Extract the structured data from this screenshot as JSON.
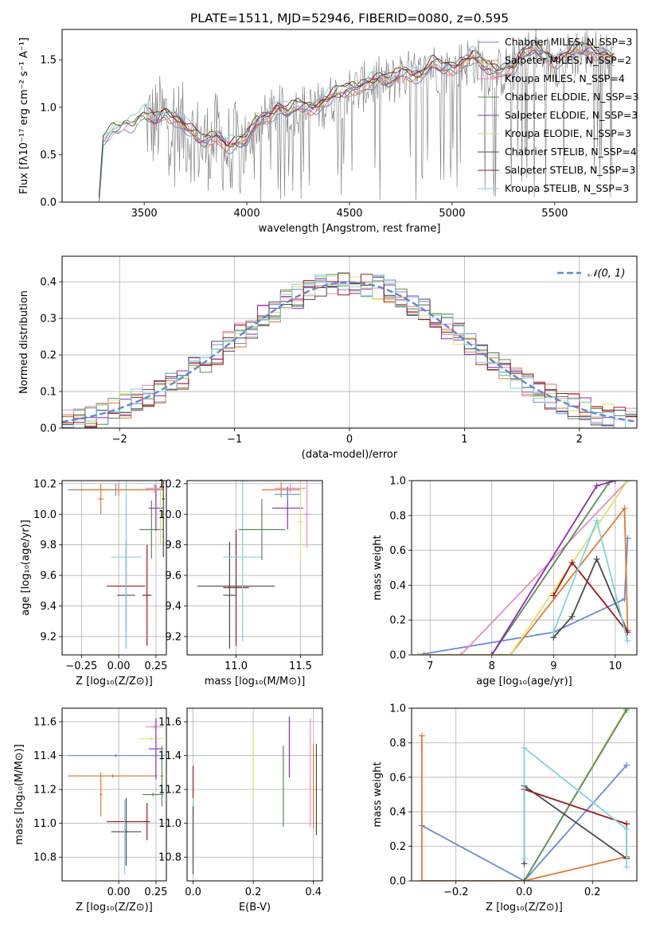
{
  "chart_data": [
    {
      "type": "line",
      "title": "PLATE=1511, MJD=52946, FIBERID=0080, z=0.595",
      "xlabel": "wavelength [Angstrom, rest frame]",
      "ylabel": "Flux [fλ10⁻¹⁷ erg cm⁻² s⁻¹ A⁻¹]",
      "xlim": [
        3100,
        5900
      ],
      "ylim": [
        0,
        1.82
      ],
      "xticks": [
        "3500",
        "4000",
        "4500",
        "5000",
        "5500"
      ],
      "yticks": [
        "0.0",
        "0.5",
        "1.0",
        "1.5"
      ],
      "grid": false,
      "legend_position": "top-right",
      "legend": [
        {
          "label": "Chabrier MILES, N_SSP=3",
          "color": "#6a8bd6"
        },
        {
          "label": "Salpeter MILES, N_SSP=2",
          "color": "#e07b30"
        },
        {
          "label": "Kroupa MILES, N_SSP=4",
          "color": "#e98bc2"
        },
        {
          "label": "Chabrier ELODIE, N_SSP=3",
          "color": "#5b8a5b"
        },
        {
          "label": "Salpeter ELODIE, N_SSP=3",
          "color": "#8f2bb3"
        },
        {
          "label": "Kroupa ELODIE, N_SSP=3",
          "color": "#d9e36b"
        },
        {
          "label": "Chabrier STELIB, N_SSP=4",
          "color": "#4a4a4a"
        },
        {
          "label": "Salpeter STELIB, N_SSP=3",
          "color": "#a01818"
        },
        {
          "label": "Kroupa STELIB, N_SSP=3",
          "color": "#80d4dc"
        }
      ],
      "model_continuum": {
        "x": [
          3200,
          3280,
          3300,
          3350,
          3400,
          3450,
          3500,
          3550,
          3600,
          3650,
          3700,
          3750,
          3800,
          3850,
          3900,
          3950,
          4000,
          4050,
          4100,
          4150,
          4200,
          4250,
          4300,
          4350,
          4400,
          4450,
          4500,
          4550,
          4600,
          4650,
          4700,
          4750,
          4800,
          4850,
          4900,
          4950,
          5000,
          5050,
          5100,
          5150,
          5200,
          5250,
          5300,
          5350,
          5400,
          5450,
          5500,
          5550,
          5600,
          5650,
          5700,
          5750,
          5800
        ],
        "y": [
          0.0,
          0.0,
          0.66,
          0.77,
          0.82,
          0.84,
          0.93,
          0.86,
          0.95,
          0.9,
          0.8,
          0.7,
          0.64,
          0.72,
          0.6,
          0.62,
          0.66,
          0.86,
          0.91,
          1.0,
          0.95,
          1.02,
          1.0,
          1.03,
          1.1,
          1.16,
          1.19,
          1.22,
          1.28,
          1.3,
          1.27,
          1.38,
          1.36,
          1.34,
          1.46,
          1.42,
          1.42,
          1.48,
          1.54,
          1.45,
          1.38,
          1.4,
          1.44,
          1.58,
          1.62,
          1.55,
          1.5,
          1.54,
          1.6,
          1.62,
          1.58,
          1.56,
          1.52
        ]
      }
    },
    {
      "type": "line",
      "xlabel": "(data-model)/error",
      "ylabel": "Normed distribution",
      "xlim": [
        -2.5,
        2.5
      ],
      "ylim": [
        0,
        0.47
      ],
      "xticks": [
        "−2",
        "−1",
        "0",
        "1",
        "2"
      ],
      "yticks": [
        "0.0",
        "0.1",
        "0.2",
        "0.3",
        "0.4"
      ],
      "grid": true,
      "legend_position": "top-right",
      "legend": [
        {
          "label": "𝒩(0, 1)",
          "color": "#5b8ad6"
        }
      ],
      "histogram_bins": 50,
      "gaussian": {
        "mean": 0,
        "sigma": 1
      }
    },
    {
      "type": "scatter",
      "xlabel": "Z [log₁₀(Z/Z⊙)]",
      "ylabel": "age  [log₁₀(age/yr)]",
      "xlim": [
        -0.38,
        0.32
      ],
      "ylim": [
        9.08,
        10.22
      ],
      "xticks": [
        "−0.25",
        "0.00",
        "0.25"
      ],
      "yticks": [
        "9.2",
        "9.4",
        "9.6",
        "9.8",
        "10.0",
        "10.2"
      ],
      "grid": true,
      "points": [
        {
          "x": 0.05,
          "y": 9.47,
          "xerr": 0.06,
          "yerr": 0.35,
          "color": "#4a4a4a"
        },
        {
          "x": 0.05,
          "y": 9.53,
          "xerr": 0.13,
          "yerr": 0.3,
          "color": "#a01818"
        },
        {
          "x": 0.19,
          "y": 9.47,
          "xerr": 0.03,
          "yerr": 0.33,
          "color": "#a01818"
        },
        {
          "x": 0.05,
          "y": 9.72,
          "xerr": 0.1,
          "yerr": 0.6,
          "color": "#80d4dc"
        },
        {
          "x": 0.22,
          "y": 9.9,
          "xerr": 0.08,
          "yerr": 0.19,
          "color": "#5b8a5b"
        },
        {
          "x": 0.25,
          "y": 10.04,
          "xerr": 0.05,
          "yerr": 0.15,
          "color": "#8f2bb3"
        },
        {
          "x": -0.02,
          "y": 10.16,
          "xerr": 0.32,
          "yerr": 0.04,
          "color": "#6a8bd6"
        },
        {
          "x": 0.0,
          "y": 10.16,
          "xerr": 0.3,
          "yerr": 0.04,
          "color": "#e07b30"
        },
        {
          "x": -0.12,
          "y": 10.1,
          "xerr": 0.02,
          "yerr": 0.1,
          "color": "#e07b30"
        },
        {
          "x": 0.24,
          "y": 10.17,
          "xerr": 0.06,
          "yerr": 0.03,
          "color": "#e98bc2"
        },
        {
          "x": 0.28,
          "y": 10.0,
          "xerr": 0.02,
          "yerr": 0.2,
          "color": "#d9e36b"
        },
        {
          "x": 0.3,
          "y": 10.1,
          "xerr": 0.01,
          "yerr": 0.38,
          "color": "#4a4a4a"
        }
      ]
    },
    {
      "type": "scatter",
      "xlabel": "mass [log₁₀(M/M⊙)]",
      "xlim": [
        10.62,
        11.67
      ],
      "ylim": [
        9.08,
        10.22
      ],
      "xticks": [
        "11.0",
        "11.5"
      ],
      "yticks": [
        "9.2",
        "9.4",
        "9.6",
        "9.8",
        "10.0",
        "10.2"
      ],
      "grid": true,
      "points": [
        {
          "x": 10.95,
          "y": 9.47,
          "xerr": 0.05,
          "yerr": 0.35,
          "color": "#4a4a4a"
        },
        {
          "x": 11.0,
          "y": 9.52,
          "xerr": 0.1,
          "yerr": 0.38,
          "color": "#a01818"
        },
        {
          "x": 11.0,
          "y": 9.53,
          "xerr": 0.3,
          "yerr": 0.05,
          "color": "#4a4a4a"
        },
        {
          "x": 11.05,
          "y": 9.72,
          "xerr": 0.15,
          "yerr": 0.55,
          "color": "#80d4dc"
        },
        {
          "x": 11.2,
          "y": 9.9,
          "xerr": 0.18,
          "yerr": 0.2,
          "color": "#5b8a5b"
        },
        {
          "x": 11.4,
          "y": 10.04,
          "xerr": 0.12,
          "yerr": 0.14,
          "color": "#8f2bb3"
        },
        {
          "x": 11.35,
          "y": 10.16,
          "xerr": 0.15,
          "yerr": 0.05,
          "color": "#e07b30"
        },
        {
          "x": 11.42,
          "y": 10.17,
          "xerr": 0.12,
          "yerr": 0.03,
          "color": "#e98bc2"
        },
        {
          "x": 11.4,
          "y": 10.13,
          "xerr": 0.1,
          "yerr": 0.05,
          "color": "#6a8bd6"
        },
        {
          "x": 11.55,
          "y": 10.0,
          "xerr": 0.03,
          "yerr": 0.22,
          "color": "#e98bc2"
        },
        {
          "x": 11.5,
          "y": 9.95,
          "xerr": 0.02,
          "yerr": 0.25,
          "color": "#d9e36b"
        }
      ]
    },
    {
      "type": "line",
      "xlabel": "age  [log₁₀(age/yr)]",
      "ylabel": "mass weight",
      "xlim": [
        6.7,
        10.35
      ],
      "ylim": [
        0,
        1
      ],
      "xticks": [
        "7",
        "8",
        "9",
        "10"
      ],
      "yticks": [
        "0.0",
        "0.2",
        "0.4",
        "0.6",
        "0.8",
        "1.0"
      ],
      "grid": true,
      "series": [
        {
          "color": "#6a8bd6",
          "x": [
            6.8,
            9.0,
            10.15,
            10.2
          ],
          "y": [
            0.0,
            0.13,
            0.32,
            0.67
          ]
        },
        {
          "color": "#e07b30",
          "x": [
            6.9,
            8.3,
            10.15,
            10.2
          ],
          "y": [
            0.0,
            0.0,
            0.84,
            0.14
          ]
        },
        {
          "color": "#e98bc2",
          "x": [
            7.5,
            10.2
          ],
          "y": [
            0.0,
            1.0
          ]
        },
        {
          "color": "#5b8a5b",
          "x": [
            8.0,
            9.9
          ],
          "y": [
            0.0,
            0.99
          ]
        },
        {
          "color": "#8f2bb3",
          "x": [
            8.0,
            9.7,
            10.0
          ],
          "y": [
            0.0,
            0.97,
            1.0
          ]
        },
        {
          "color": "#d9e36b",
          "x": [
            6.8,
            8.3,
            10.2
          ],
          "y": [
            0.0,
            0.0,
            1.0
          ]
        },
        {
          "color": "#4a4a4a",
          "x": [
            9.0,
            9.3,
            9.7,
            10.2
          ],
          "y": [
            0.1,
            0.22,
            0.55,
            0.13
          ]
        },
        {
          "color": "#a01818",
          "x": [
            9.0,
            9.3,
            10.2
          ],
          "y": [
            0.34,
            0.53,
            0.13
          ]
        },
        {
          "color": "#80d4dc",
          "x": [
            9.0,
            9.7,
            10.2
          ],
          "y": [
            0.13,
            0.77,
            0.08
          ]
        }
      ]
    },
    {
      "type": "scatter",
      "xlabel": "Z [log₁₀(Z/Z⊙)]",
      "ylabel": "mass [log₁₀(M/M⊙)]",
      "xlim": [
        -0.38,
        0.32
      ],
      "ylim": [
        10.66,
        11.68
      ],
      "xticks": [
        "0.00",
        "0.25"
      ],
      "yticks": [
        "10.8",
        "11.0",
        "11.2",
        "11.4",
        "11.6"
      ],
      "grid": true,
      "points": [
        {
          "x": -0.02,
          "y": 11.4,
          "xerr": 0.32,
          "yerr": 0.01,
          "color": "#6a8bd6"
        },
        {
          "x": -0.04,
          "y": 11.28,
          "xerr": 0.3,
          "yerr": 0.01,
          "color": "#e07b30"
        },
        {
          "x": -0.12,
          "y": 11.17,
          "xerr": 0.01,
          "yerr": 0.13,
          "color": "#e07b30"
        },
        {
          "x": 0.24,
          "y": 11.57,
          "xerr": 0.06,
          "yerr": 0.01,
          "color": "#e98bc2"
        },
        {
          "x": 0.22,
          "y": 11.5,
          "xerr": 0.08,
          "yerr": 0.01,
          "color": "#d9e36b"
        },
        {
          "x": 0.25,
          "y": 11.44,
          "xerr": 0.05,
          "yerr": 0.18,
          "color": "#8f2bb3"
        },
        {
          "x": 0.23,
          "y": 11.17,
          "xerr": 0.07,
          "yerr": 0.01,
          "color": "#5b8a5b"
        },
        {
          "x": 0.29,
          "y": 11.28,
          "xerr": 0.01,
          "yerr": 0.18,
          "color": "#5b8a5b"
        },
        {
          "x": 0.05,
          "y": 11.01,
          "xerr": 0.13,
          "yerr": 0.01,
          "color": "#a01818"
        },
        {
          "x": 0.19,
          "y": 11.01,
          "xerr": 0.02,
          "yerr": 0.11,
          "color": "#a01818"
        },
        {
          "x": 0.05,
          "y": 10.95,
          "xerr": 0.1,
          "yerr": 0.01,
          "color": "#4a4a4a"
        },
        {
          "x": 0.05,
          "y": 10.95,
          "xerr": 0.01,
          "yerr": 0.2,
          "color": "#4a4a4a"
        },
        {
          "x": 0.04,
          "y": 10.92,
          "xerr": 0.01,
          "yerr": 0.22,
          "color": "#80d4dc"
        }
      ]
    },
    {
      "type": "scatter",
      "xlabel": "E(B-V)",
      "xlim": [
        -0.02,
        0.43
      ],
      "ylim": [
        10.66,
        11.68
      ],
      "xticks": [
        "0.0",
        "0.2",
        "0.4"
      ],
      "yticks": [
        "10.8",
        "11.0",
        "11.2",
        "11.4",
        "11.6"
      ],
      "grid": true,
      "points": [
        {
          "x": 0.0,
          "y": 11.2,
          "xerr": 0.0,
          "yerr": 0.14,
          "color": "#a01818"
        },
        {
          "x": 0.0,
          "y": 10.95,
          "xerr": 0.0,
          "yerr": 0.2,
          "color": "#80d4dc"
        },
        {
          "x": 0.0,
          "y": 10.9,
          "xerr": 0.0,
          "yerr": 0.2,
          "color": "#4a4a4a"
        },
        {
          "x": 0.2,
          "y": 11.35,
          "xerr": 0.0,
          "yerr": 0.2,
          "color": "#d9e36b"
        },
        {
          "x": 0.3,
          "y": 11.22,
          "xerr": 0.0,
          "yerr": 0.24,
          "color": "#5b8a5b"
        },
        {
          "x": 0.32,
          "y": 11.45,
          "xerr": 0.0,
          "yerr": 0.18,
          "color": "#8f2bb3"
        },
        {
          "x": 0.39,
          "y": 11.3,
          "xerr": 0.0,
          "yerr": 0.32,
          "color": "#e98bc2"
        },
        {
          "x": 0.4,
          "y": 11.22,
          "xerr": 0.0,
          "yerr": 0.25,
          "color": "#e07b30"
        },
        {
          "x": 0.41,
          "y": 11.2,
          "xerr": 0.0,
          "yerr": 0.27,
          "color": "#4a4a4a"
        }
      ]
    },
    {
      "type": "line",
      "xlabel": "Z [log₁₀(Z/Z⊙)]",
      "ylabel": "mass weight",
      "xlim": [
        -0.33,
        0.33
      ],
      "ylim": [
        0,
        1
      ],
      "xticks": [
        "−0.2",
        "0.0",
        "0.2"
      ],
      "yticks": [
        "0.0",
        "0.2",
        "0.4",
        "0.6",
        "0.8",
        "1.0"
      ],
      "grid": true,
      "series": [
        {
          "color": "#6a8bd6",
          "x": [
            -0.3,
            0.0,
            0.3
          ],
          "y": [
            0.32,
            0.0,
            0.67
          ]
        },
        {
          "color": "#e07b30",
          "x": [
            -0.3,
            -0.3,
            0.0,
            0.3
          ],
          "y": [
            0.84,
            0.0,
            0.0,
            0.14
          ]
        },
        {
          "color": "#d9e36b",
          "x": [
            0.0,
            0.3
          ],
          "y": [
            0.0,
            1.0
          ]
        },
        {
          "color": "#5b8a5b",
          "x": [
            0.0,
            0.3
          ],
          "y": [
            0.0,
            0.99
          ]
        },
        {
          "color": "#4a4a4a",
          "x": [
            0.0,
            0.0,
            0.3
          ],
          "y": [
            0.1,
            0.55,
            0.13
          ]
        },
        {
          "color": "#a01818",
          "x": [
            0.0,
            0.3,
            0.3
          ],
          "y": [
            0.53,
            0.33,
            0.13
          ]
        },
        {
          "color": "#80d4dc",
          "x": [
            0.0,
            0.0,
            0.3,
            0.3
          ],
          "y": [
            0.13,
            0.77,
            0.3,
            0.08
          ]
        }
      ]
    }
  ]
}
